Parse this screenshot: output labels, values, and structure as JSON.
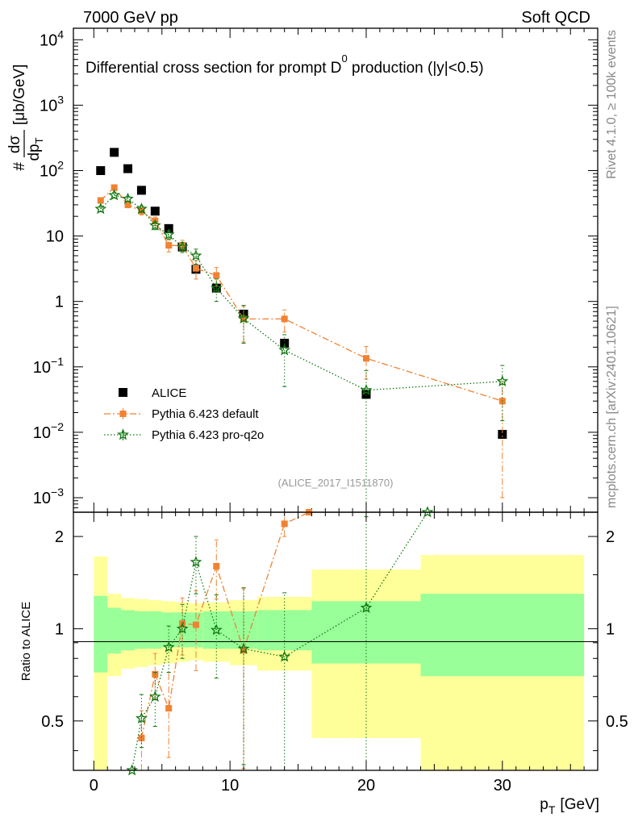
{
  "header": {
    "left": "7000 GeV pp",
    "right": "Soft QCD"
  },
  "side_labels": {
    "rivet": "Rivet 4.1.0, ≥ 100k events",
    "mcplots": "mcplots.cern.ch [arXiv:2401.10621]"
  },
  "watermark": "(ALICE_2017_I1511870)",
  "colors": {
    "alice": "#000000",
    "default": "#f08232",
    "proq2o": "#117711",
    "band_outer": "#ffff99",
    "band_inner": "#99ff99"
  },
  "chart_data": [
    {
      "type": "scatter",
      "panel": "main",
      "title": "Differential cross section for prompt D⁰ production (|y|<0.5)",
      "title_prefix": "Differential cross section for prompt D",
      "title_sup": "0",
      "title_suffix": " production (|y|<0.5)",
      "ylabel_prefix": "#",
      "ylabel_num": "dσ",
      "ylabel_den": "dp",
      "ylabel_den_sub": "T",
      "ylabel_unit": "[μb/GeV]",
      "yscale": "log",
      "xlim": [
        -1.5,
        37
      ],
      "ylim": [
        0.0006,
        15000
      ],
      "yticks": [
        {
          "v": 0.001,
          "base": "10",
          "exp": "−3"
        },
        {
          "v": 0.01,
          "base": "10",
          "exp": "−2"
        },
        {
          "v": 0.1,
          "base": "10",
          "exp": "−1"
        },
        {
          "v": 1,
          "base": "1",
          "exp": ""
        },
        {
          "v": 10,
          "base": "10",
          "exp": ""
        },
        {
          "v": 100,
          "base": "10",
          "exp": "2"
        },
        {
          "v": 1000,
          "base": "10",
          "exp": "3"
        },
        {
          "v": 10000,
          "base": "10",
          "exp": "4"
        }
      ],
      "legend": [
        "ALICE",
        "Pythia 6.423 default",
        "Pythia 6.423 pro-q2o"
      ],
      "series": [
        {
          "name": "ALICE",
          "x": [
            0.5,
            1.5,
            2.5,
            3.5,
            4.5,
            5.5,
            6.5,
            7.5,
            9,
            11,
            14,
            20,
            30
          ],
          "y": [
            100,
            190,
            107,
            50,
            24,
            13,
            6.8,
            3.1,
            1.6,
            0.64,
            0.23,
            0.038,
            0.0093
          ]
        },
        {
          "name": "Pythia 6.423 default",
          "x": [
            0.5,
            1.5,
            2.5,
            3.5,
            4.5,
            5.5,
            6.5,
            7.5,
            9,
            11,
            14,
            20,
            30
          ],
          "y": [
            35,
            55,
            30,
            24,
            17,
            7.2,
            7.1,
            3.2,
            2.5,
            0.54,
            0.54,
            0.135,
            0.03
          ],
          "err": [
            3,
            5,
            3,
            3,
            2.5,
            1.5,
            1.5,
            1.0,
            0.8,
            0.3,
            0.2,
            0.07,
            0.029
          ]
        },
        {
          "name": "Pythia 6.423 pro-q2o",
          "x": [
            0.5,
            1.5,
            2.5,
            3.5,
            4.5,
            5.5,
            6.5,
            7.5,
            9,
            11,
            14,
            20,
            30
          ],
          "y": [
            26,
            42,
            37,
            26,
            14.5,
            10.5,
            6.8,
            5.0,
            1.6,
            0.55,
            0.18,
            0.044,
            0.06
          ],
          "err": [
            2.5,
            4,
            3,
            3,
            2,
            1.5,
            1.2,
            1.3,
            0.6,
            0.32,
            0.13,
            0.0438,
            0.045
          ]
        }
      ]
    },
    {
      "type": "scatter",
      "panel": "ratio",
      "ylabel": "Ratio to ALICE",
      "xlabel_main": "p",
      "xlabel_sub": "T",
      "xlabel_unit": "[GeV]",
      "yscale": "log",
      "xlim": [
        -1.5,
        37
      ],
      "ylim": [
        0.345,
        2.4
      ],
      "yticks": [
        {
          "v": 0.5,
          "label": "0.5"
        },
        {
          "v": 1,
          "label": "1"
        },
        {
          "v": 2,
          "label": "2"
        }
      ],
      "xticks": [
        {
          "v": 0,
          "label": "0"
        },
        {
          "v": 10,
          "label": "10"
        },
        {
          "v": 20,
          "label": "20"
        },
        {
          "v": 30,
          "label": "30"
        }
      ],
      "bands": {
        "edges": [
          0,
          1,
          2,
          3,
          4,
          5,
          6,
          7,
          8,
          10,
          12,
          16,
          24,
          36
        ],
        "inner": [
          0.28,
          0.17,
          0.15,
          0.14,
          0.14,
          0.13,
          0.13,
          0.13,
          0.14,
          0.14,
          0.15,
          0.23,
          0.3
        ],
        "outer": [
          0.72,
          0.3,
          0.26,
          0.25,
          0.24,
          0.23,
          0.22,
          0.21,
          0.22,
          0.24,
          0.27,
          0.56,
          0.74
        ]
      },
      "series": [
        {
          "name": "Pythia 6.423 default",
          "x": [
            3.5,
            4.5,
            5.5,
            6.5,
            7.5,
            9,
            11,
            14,
            15.8
          ],
          "y": [
            0.44,
            0.71,
            0.55,
            1.04,
            1.03,
            1.6,
            0.85,
            2.2,
            2.4
          ],
          "err": [
            0.1,
            0.12,
            0.17,
            0.22,
            0.3,
            0.35,
            0.5,
            0.2,
            0
          ]
        },
        {
          "name": "Pythia 6.423 pro-q2o",
          "x": [
            2.8,
            3.5,
            4.5,
            5.5,
            6.5,
            7.5,
            9,
            11,
            14,
            20,
            24.5
          ],
          "y": [
            0.345,
            0.51,
            0.6,
            0.87,
            1.0,
            1.65,
            0.99,
            0.86,
            0.81,
            1.17,
            2.4
          ],
          "err": [
            0,
            0.1,
            0.12,
            0.15,
            0.2,
            0.35,
            0.3,
            0.5,
            0.5,
            1.15,
            0
          ]
        }
      ]
    }
  ]
}
